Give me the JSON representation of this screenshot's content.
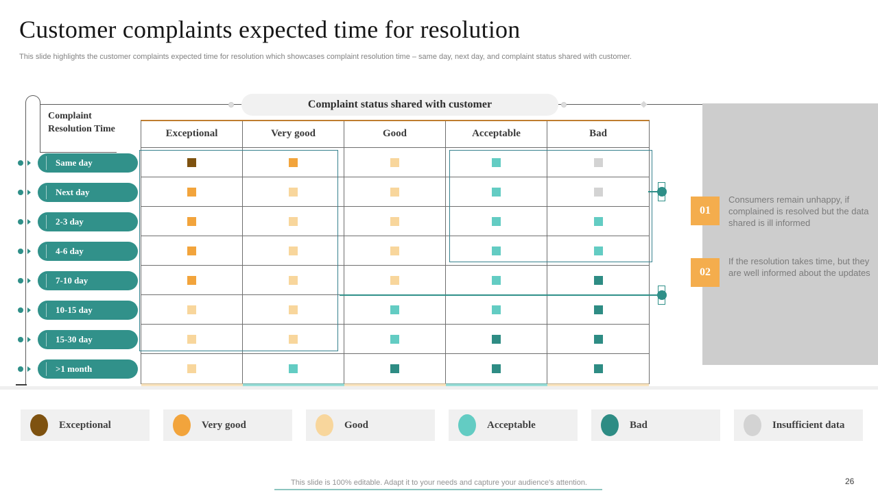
{
  "slide": {
    "title": "Customer complaints expected time for resolution",
    "subtitle": "This slide highlights the customer complaints expected time for resolution which showcases complaint resolution time – same day, next day, and complaint status shared with customer.",
    "footer_note": "This slide is 100% editable. Adapt it to your needs and capture your audience's attention.",
    "page_number": "26"
  },
  "banner": {
    "label": "Complaint status shared with customer"
  },
  "axis_label": "Complaint Resolution Time",
  "chart_data": {
    "type": "heatmap",
    "title": "Customer complaints expected time for resolution",
    "columns": [
      "Exceptional",
      "Very good",
      "Good",
      "Acceptable",
      "Bad"
    ],
    "rows": [
      "Same day",
      "Next day",
      "2-3 day",
      "4-6 day",
      "7-10 day",
      "10-15 day",
      "15-30 day",
      ">1 month"
    ],
    "cells": [
      [
        "exceptional",
        "very_good",
        "good",
        "acceptable",
        "insufficient"
      ],
      [
        "very_good",
        "good",
        "good",
        "acceptable",
        "insufficient"
      ],
      [
        "very_good",
        "good",
        "good",
        "acceptable",
        "acceptable"
      ],
      [
        "very_good",
        "good",
        "good",
        "acceptable",
        "acceptable"
      ],
      [
        "very_good",
        "good",
        "good",
        "acceptable",
        "bad"
      ],
      [
        "good",
        "good",
        "acceptable",
        "acceptable",
        "bad"
      ],
      [
        "good",
        "good",
        "acceptable",
        "bad",
        "bad"
      ],
      [
        "good",
        "acceptable",
        "bad",
        "bad",
        "bad"
      ]
    ],
    "cropped_row_strip": [
      "good",
      "acceptable",
      "good",
      "acceptable",
      "good"
    ],
    "legend": [
      {
        "key": "exceptional",
        "label": "Exceptional"
      },
      {
        "key": "very_good",
        "label": "Very good"
      },
      {
        "key": "good",
        "label": "Good"
      },
      {
        "key": "acceptable",
        "label": "Acceptable"
      },
      {
        "key": "bad",
        "label": "Bad"
      },
      {
        "key": "insufficient",
        "label": "Insufficient data"
      }
    ]
  },
  "status_colors": {
    "exceptional": "#7E5210",
    "very_good": "#F2A43C",
    "good": "#F8D69C",
    "acceptable": "#63CCC3",
    "bad": "#2E8C84",
    "insufficient": "#D3D3D3"
  },
  "callouts": [
    {
      "number": "01",
      "text": "Consumers remain unhappy, if complained is resolved but the data shared is ill informed"
    },
    {
      "number": "02",
      "text": "If the resolution takes time, but they are well informed about the updates"
    }
  ],
  "accent_colors": {
    "header_orange": "#F3A943",
    "pill_teal": "#31918A",
    "connector_teal": "#2E8F88",
    "panel_gray": "#CDCDCD",
    "callout_orange": "#F4AD4D"
  }
}
